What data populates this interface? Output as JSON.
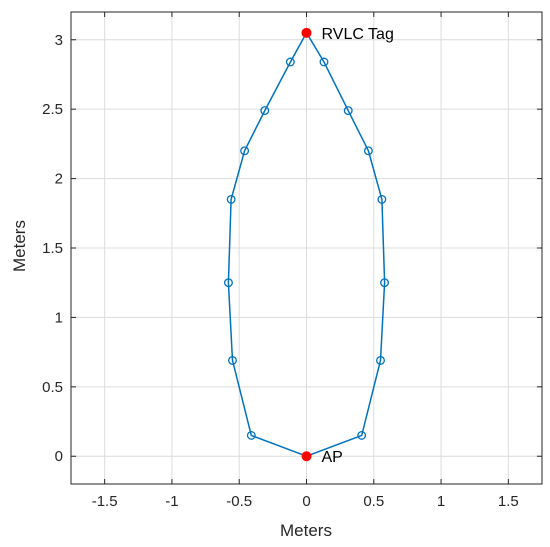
{
  "chart_data": {
    "type": "line",
    "xlabel": "Meters",
    "ylabel": "Meters",
    "xlim": [
      -1.75,
      1.75
    ],
    "ylim": [
      -0.2,
      3.2
    ],
    "x_ticks": [
      -1.5,
      -1,
      -0.5,
      0,
      0.5,
      1,
      1.5
    ],
    "x_tick_labels": [
      "-1.5",
      "-1",
      "-0.5",
      "0",
      "0.5",
      "1",
      "1.5"
    ],
    "y_ticks": [
      0,
      0.5,
      1,
      1.5,
      2,
      2.5,
      3
    ],
    "y_tick_labels": [
      "0",
      "0.5",
      "1",
      "1.5",
      "2",
      "2.5",
      "3"
    ],
    "grid": true,
    "series": [
      {
        "color": "#0072BD",
        "marker": "circle-open",
        "x": [
          0,
          0.41,
          0.55,
          0.58,
          0.56,
          0.46,
          0.31,
          0.13,
          0,
          -0.12,
          -0.31,
          -0.46,
          -0.56,
          -0.58,
          -0.55,
          -0.41,
          0
        ],
        "y": [
          0,
          0.15,
          0.69,
          1.25,
          1.85,
          2.2,
          2.49,
          2.84,
          3.05,
          2.84,
          2.49,
          2.2,
          1.85,
          1.25,
          0.69,
          0.15,
          0
        ]
      }
    ],
    "annotations": [
      {
        "label": "RVLC Tag",
        "x": 0,
        "y": 3.05,
        "color": "#FF0000"
      },
      {
        "label": "AP",
        "x": 0,
        "y": 0,
        "color": "#FF0000"
      }
    ]
  }
}
